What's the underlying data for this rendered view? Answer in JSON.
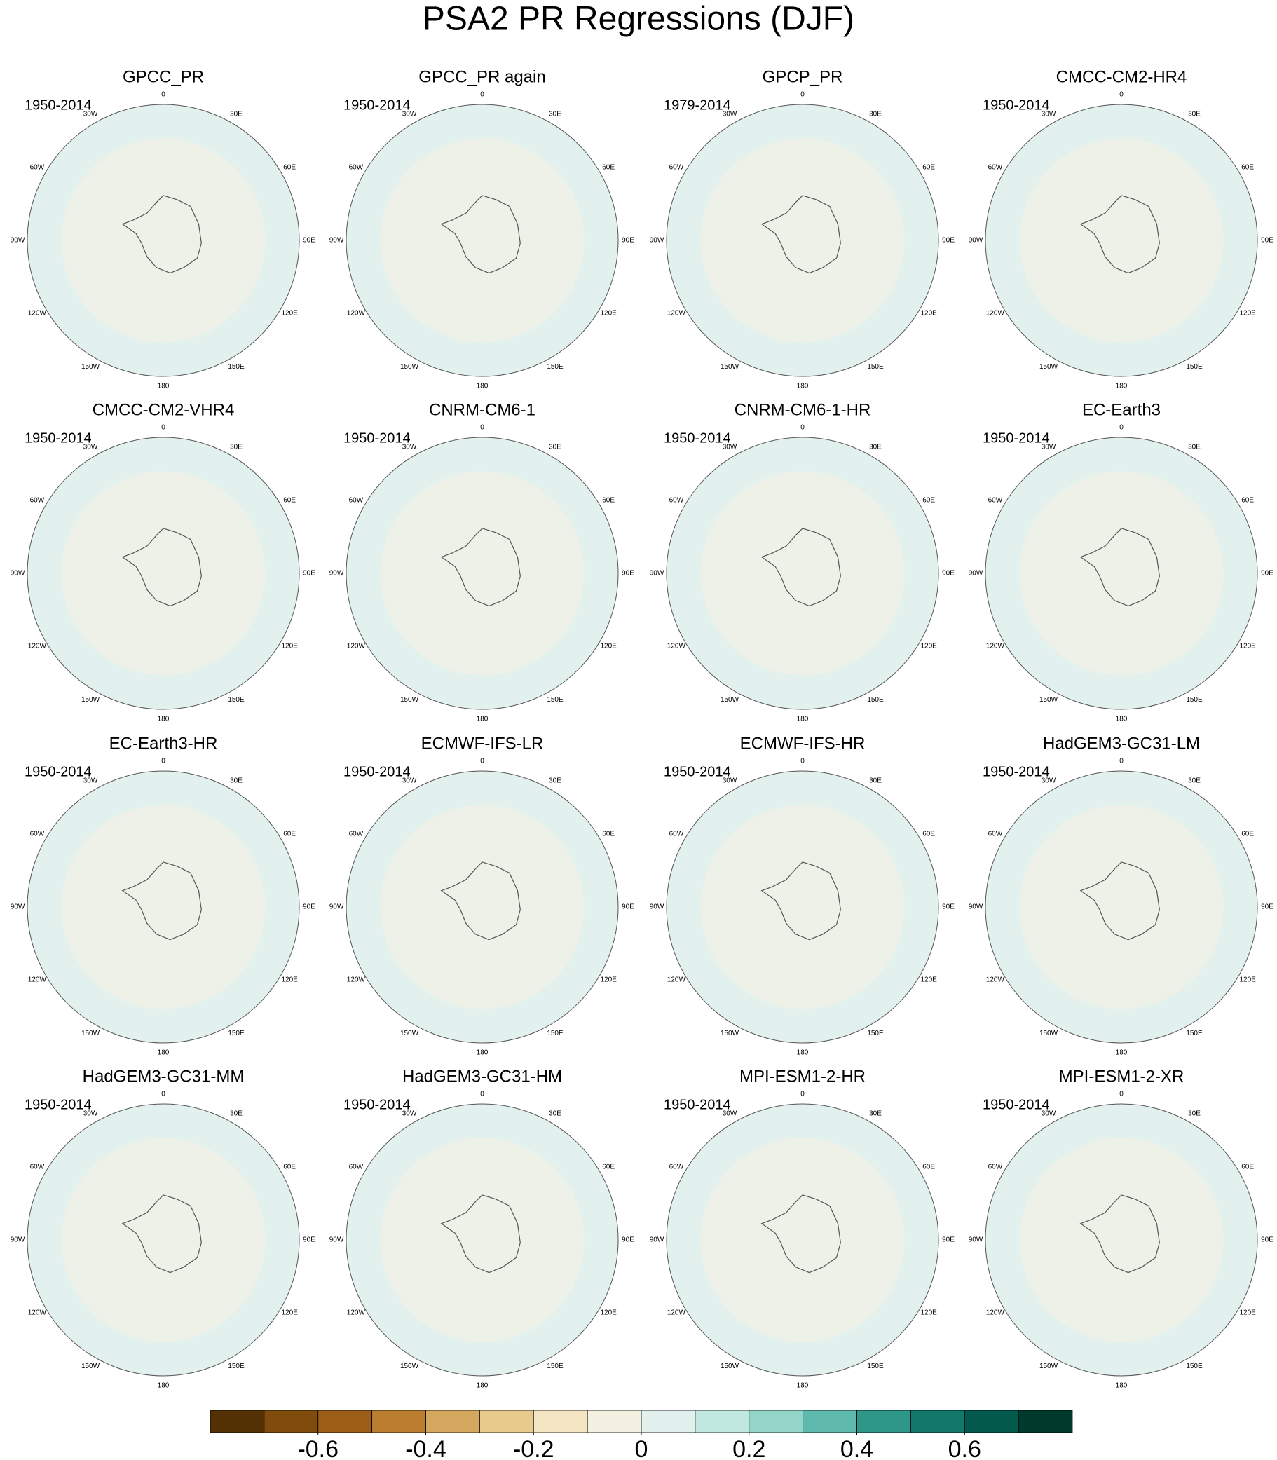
{
  "chart_data": {
    "type": "contour-map",
    "title": "PSA2 PR Regressions (DJF)",
    "lon_labels": [
      "0",
      "30E",
      "60E",
      "90E",
      "120E",
      "150E",
      "180",
      "150W",
      "120W",
      "90W",
      "60W",
      "30W"
    ],
    "panels": [
      {
        "title": "GPCC_PR",
        "period": "1950-2014"
      },
      {
        "title": "GPCC_PR again",
        "period": "1950-2014"
      },
      {
        "title": "GPCP_PR",
        "period": "1979-2014"
      },
      {
        "title": "CMCC-CM2-HR4",
        "period": "1950-2014"
      },
      {
        "title": "CMCC-CM2-VHR4",
        "period": "1950-2014"
      },
      {
        "title": "CNRM-CM6-1",
        "period": "1950-2014"
      },
      {
        "title": "CNRM-CM6-1-HR",
        "period": "1950-2014"
      },
      {
        "title": "EC-Earth3",
        "period": "1950-2014"
      },
      {
        "title": "EC-Earth3-HR",
        "period": "1950-2014"
      },
      {
        "title": "ECMWF-IFS-LR",
        "period": "1950-2014"
      },
      {
        "title": "ECMWF-IFS-HR",
        "period": "1950-2014"
      },
      {
        "title": "HadGEM3-GC31-LM",
        "period": "1950-2014"
      },
      {
        "title": "HadGEM3-GC31-MM",
        "period": "1950-2014"
      },
      {
        "title": "HadGEM3-GC31-HM",
        "period": "1950-2014"
      },
      {
        "title": "MPI-ESM1-2-HR",
        "period": "1950-2014"
      },
      {
        "title": "MPI-ESM1-2-XR",
        "period": "1950-2014"
      }
    ],
    "colorbar": {
      "colors": [
        "#543005",
        "#7f4c0e",
        "#9c5e17",
        "#bb7d2f",
        "#d4a95f",
        "#e7cb8d",
        "#f4e6c3",
        "#f5f1e2",
        "#e2f1ee",
        "#c0e8e0",
        "#93d6c9",
        "#5fbaad",
        "#2f978a",
        "#12786b",
        "#035a4c",
        "#01392c"
      ],
      "xlim": [
        -0.8,
        0.8
      ],
      "xticks": [
        -0.6,
        -0.4,
        -0.2,
        0,
        0.2,
        0.4,
        0.6
      ]
    }
  }
}
